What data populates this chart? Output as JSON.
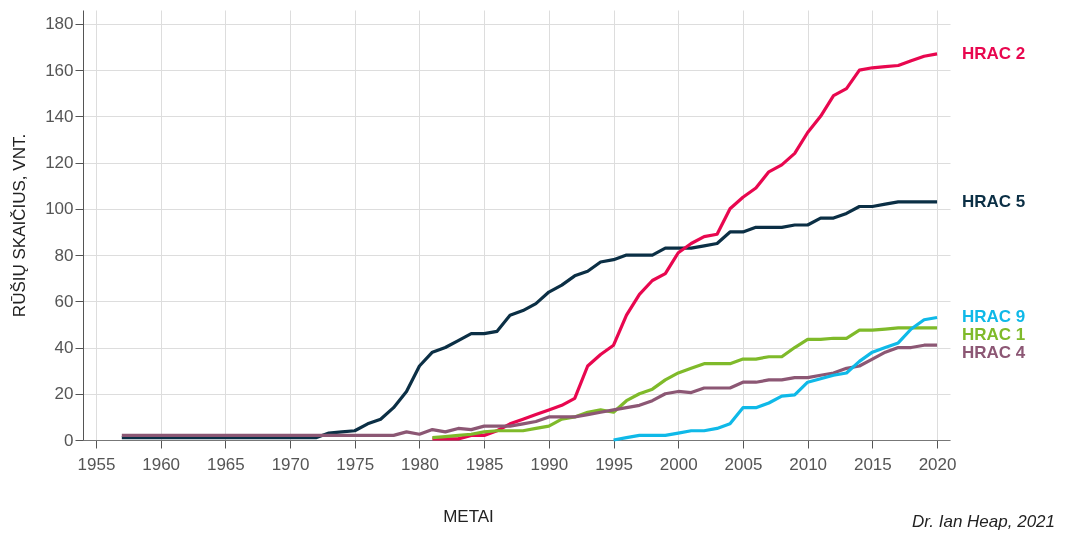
{
  "chart_data": {
    "type": "line",
    "xlabel": "METAI",
    "ylabel": "RŪŠIŲ SKAIČIUS, VNT.",
    "annotations": [
      "Dr. Ian Heap, 2021"
    ],
    "xlim": [
      1954,
      2021
    ],
    "xticks": [
      1955,
      1960,
      1965,
      1970,
      1975,
      1980,
      1985,
      1990,
      1995,
      2000,
      2005,
      2010,
      2015,
      2020
    ],
    "ylim": [
      0,
      186
    ],
    "yticks": [
      0,
      20,
      40,
      60,
      80,
      100,
      120,
      140,
      160,
      180
    ],
    "grid": true,
    "legend": false,
    "marker": "none",
    "line_style": "solid",
    "series": [
      {
        "name": "HRAC 5",
        "color": "#0b2f45",
        "x": [
          1957,
          1972,
          1973,
          1974,
          1975,
          1976,
          1977,
          1978,
          1979,
          1980,
          1981,
          1982,
          1983,
          1984,
          1985,
          1986,
          1987,
          1988,
          1989,
          1990,
          1991,
          1992,
          1993,
          1994,
          1995,
          1996,
          1997,
          1998,
          1999,
          2000,
          2001,
          2002,
          2003,
          2004,
          2005,
          2006,
          2007,
          2008,
          2009,
          2010,
          2011,
          2012,
          2013,
          2014,
          2015,
          2016,
          2017,
          2018,
          2019,
          2020
        ],
        "values": [
          1,
          1,
          3,
          3.5,
          4,
          7,
          9,
          14,
          21,
          32,
          38,
          40,
          43,
          46,
          46,
          47,
          54,
          56,
          59,
          64,
          67,
          71,
          73,
          77,
          78,
          80,
          80,
          80,
          83,
          83,
          83,
          84,
          85,
          90,
          90,
          92,
          92,
          92,
          93,
          93,
          96,
          96,
          98,
          101,
          101,
          102,
          103,
          103,
          103,
          103
        ]
      },
      {
        "name": "HRAC 2",
        "color": "#e8074f",
        "x": [
          1981,
          1982,
          1983,
          1984,
          1985,
          1986,
          1987,
          1988,
          1989,
          1990,
          1991,
          1992,
          1993,
          1994,
          1995,
          1996,
          1997,
          1998,
          1999,
          2000,
          2001,
          2002,
          2003,
          2004,
          2005,
          2006,
          2007,
          2008,
          2009,
          2010,
          2011,
          2012,
          2013,
          2014,
          2015,
          2016,
          2017,
          2018,
          2019,
          2020
        ],
        "values": [
          0.5,
          0.5,
          0.5,
          2,
          2,
          4,
          7,
          9,
          11,
          13,
          15,
          18,
          32,
          37,
          41,
          54,
          63,
          69,
          72,
          81,
          85,
          88,
          89,
          100,
          105,
          109,
          116,
          119,
          124,
          133,
          140,
          149,
          152,
          160,
          161,
          161.5,
          162,
          164,
          166,
          167
        ]
      },
      {
        "name": "HRAC 1",
        "color": "#7fba2a",
        "x": [
          1981,
          1982,
          1983,
          1984,
          1985,
          1986,
          1987,
          1988,
          1989,
          1990,
          1991,
          1992,
          1993,
          1994,
          1995,
          1996,
          1997,
          1998,
          1999,
          2000,
          2001,
          2002,
          2003,
          2004,
          2005,
          2006,
          2007,
          2008,
          2009,
          2010,
          2011,
          2012,
          2013,
          2014,
          2015,
          2016,
          2017,
          2018,
          2019,
          2020
        ],
        "values": [
          1,
          1.5,
          2,
          2.5,
          3.5,
          4,
          4,
          4,
          5,
          6,
          9,
          10,
          12,
          13,
          12,
          17,
          20,
          22,
          26,
          29,
          31,
          33,
          33,
          33,
          35,
          35,
          36,
          36,
          40,
          43.5,
          43.5,
          44,
          44,
          47.5,
          47.5,
          48,
          48.5,
          48.5,
          48.5,
          48.5
        ]
      },
      {
        "name": "HRAC 4",
        "color": "#8c5774",
        "x": [
          1957,
          1978,
          1979,
          1980,
          1981,
          1982,
          1983,
          1984,
          1985,
          1986,
          1987,
          1988,
          1989,
          1990,
          1991,
          1992,
          1993,
          1994,
          1995,
          1996,
          1997,
          1998,
          1999,
          2000,
          2001,
          2002,
          2003,
          2004,
          2005,
          2006,
          2007,
          2008,
          2009,
          2010,
          2011,
          2012,
          2013,
          2014,
          2015,
          2016,
          2017,
          2018,
          2019,
          2020
        ],
        "values": [
          2,
          2,
          3.5,
          2.5,
          4.5,
          3.5,
          5,
          4.5,
          6,
          6,
          6,
          7,
          8,
          10,
          10,
          10,
          11,
          12,
          13,
          14,
          15,
          17,
          20,
          21,
          20.5,
          22.5,
          22.5,
          22.5,
          25,
          25,
          26,
          26,
          27,
          27,
          28,
          29,
          31,
          32,
          35,
          38,
          40,
          40,
          41,
          41
        ]
      },
      {
        "name": "HRAC 9",
        "color": "#0fb9e8",
        "x": [
          1995,
          1996,
          1997,
          1998,
          1999,
          2000,
          2001,
          2002,
          2003,
          2004,
          2005,
          2006,
          2007,
          2008,
          2009,
          2010,
          2011,
          2012,
          2013,
          2014,
          2015,
          2016,
          2017,
          2018,
          2019,
          2020
        ],
        "values": [
          0,
          1,
          2,
          2,
          2,
          3,
          4,
          4,
          5,
          7,
          14,
          14,
          16,
          19,
          19.5,
          25,
          26.5,
          28,
          29,
          34,
          38,
          40,
          42,
          48,
          52,
          53
        ]
      }
    ]
  }
}
